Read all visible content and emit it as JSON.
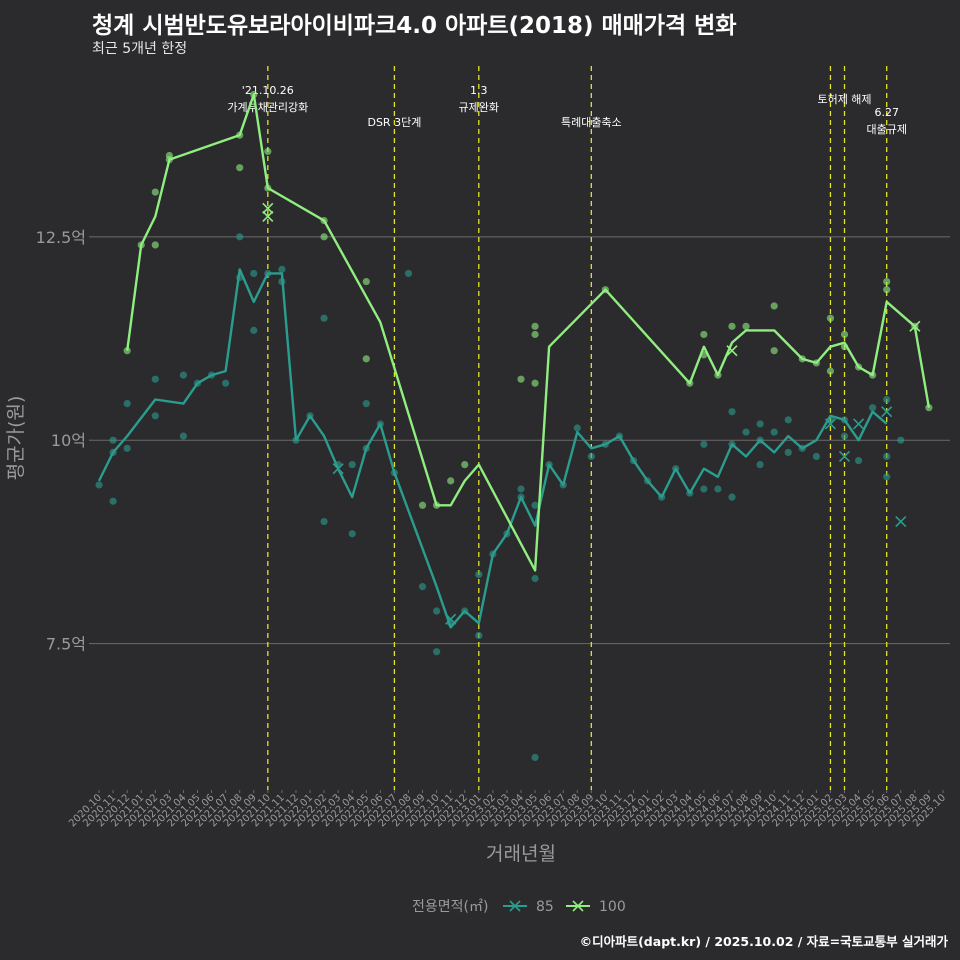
{
  "header": {
    "title": "청계 시범반도유보라아이비파크4.0 아파트(2018) 매매가격 변화",
    "subtitle": "최근 5개년 한정"
  },
  "footer": {
    "caption": "©디아파트(dapt.kr) / 2025.10.02 / 자료=국토교통부 실거래가"
  },
  "colors": {
    "background": "#2b2b2d",
    "grid": "#6b6b6b",
    "series_85": "#2a9d8f",
    "series_100": "#90ee80",
    "event_line": "#e3e32a",
    "axis_text": "#9a9a9a"
  },
  "chart_data": {
    "type": "line",
    "title": "청계 시범반도유보라아이비파크4.0 아파트(2018) 매매가격 변화",
    "xlabel": "거래년월",
    "ylabel": "평균가(원)",
    "ylim": [
      5.7,
      14.6
    ],
    "y_ticks": [
      7.5,
      10,
      12.5
    ],
    "y_tick_labels": [
      "7.5억",
      "10억",
      "12.5억"
    ],
    "grid": true,
    "legend": {
      "title": "전용면적(㎡)",
      "position": "bottom",
      "entries": [
        "85",
        "100"
      ]
    },
    "categories": [
      "2020.10",
      "2020.11",
      "2020.12",
      "2021.01",
      "2021.02",
      "2021.03",
      "2021.04",
      "2021.05",
      "2021.06",
      "2021.07",
      "2021.08",
      "2021.09",
      "2021.10",
      "2021.11",
      "2021.12",
      "2022.01",
      "2022.02",
      "2022.03",
      "2022.04",
      "2022.05",
      "2022.06",
      "2022.07",
      "2022.08",
      "2022.09",
      "2022.10",
      "2022.11",
      "2022.12",
      "2023.01",
      "2023.02",
      "2023.03",
      "2023.04",
      "2023.05",
      "2023.06",
      "2023.07",
      "2023.08",
      "2023.09",
      "2023.10",
      "2023.11",
      "2023.12",
      "2024.01",
      "2024.02",
      "2024.03",
      "2024.04",
      "2024.05",
      "2024.06",
      "2024.07",
      "2024.08",
      "2024.09",
      "2024.10",
      "2024.11",
      "2024.12",
      "2025.01",
      "2025.02",
      "2025.03",
      "2025.04",
      "2025.05",
      "2025.06",
      "2025.07",
      "2025.08",
      "2025.09",
      "2025.10"
    ],
    "x_tick_labels": [
      "2020.10",
      "2020.11",
      "2020.12",
      "2021.01",
      "2021.02",
      "2021.03",
      "2021.04",
      "2021.05",
      "2021.06",
      "2021.07",
      "2021.08",
      "2021.09",
      "2021.10",
      "2021.11",
      "2021.12",
      "2022.01",
      "2022.02",
      "2022.03",
      "2022.04",
      "2022.05",
      "2022.06",
      "2022.07",
      "2022.08",
      "2022.09",
      "2022.10",
      "2022.11",
      "2022.12",
      "2023.01",
      "2023.02",
      "2023.03",
      "2023.04",
      "2023.05",
      "2023.06",
      "2023.07",
      "2023.08",
      "2023.09",
      "2023.10",
      "2023.11",
      "2023.12",
      "2024.01",
      "2024.02",
      "2024.03",
      "2024.04",
      "2024.05",
      "2024.06",
      "2024.07",
      "2024.08",
      "2024.09",
      "2024.10",
      "2024.11",
      "2024.12",
      "2025.01",
      "2025.02",
      "2025.03",
      "2025.04",
      "2025.05",
      "2025.06",
      "2025.07",
      "2025.08",
      "2025.09",
      "2025.10"
    ],
    "series": [
      {
        "name": "85",
        "line": [
          [
            0,
            9.5
          ],
          [
            1,
            9.85
          ],
          [
            2,
            10.05
          ],
          [
            4,
            10.5
          ],
          [
            6,
            10.45
          ],
          [
            7,
            10.7
          ],
          [
            8,
            10.8
          ],
          [
            9,
            10.85
          ],
          [
            10,
            12.1
          ],
          [
            11,
            11.7
          ],
          [
            12,
            12.05
          ],
          [
            13,
            12.05
          ],
          [
            14,
            10.0
          ],
          [
            15,
            10.3
          ],
          [
            16,
            10.05
          ],
          [
            17,
            9.65
          ],
          [
            18,
            9.3
          ],
          [
            19,
            9.9
          ],
          [
            20,
            10.2
          ],
          [
            21,
            9.6
          ],
          [
            24,
            8.2
          ],
          [
            25,
            7.7
          ],
          [
            26,
            7.9
          ],
          [
            27,
            7.75
          ],
          [
            28,
            8.6
          ],
          [
            29,
            8.85
          ],
          [
            30,
            9.3
          ],
          [
            31,
            8.95
          ],
          [
            32,
            9.7
          ],
          [
            33,
            9.45
          ],
          [
            34,
            10.1
          ],
          [
            35,
            9.9
          ],
          [
            36,
            9.95
          ],
          [
            37,
            10.05
          ],
          [
            38,
            9.75
          ],
          [
            39,
            9.5
          ],
          [
            40,
            9.3
          ],
          [
            41,
            9.65
          ],
          [
            42,
            9.35
          ],
          [
            43,
            9.65
          ],
          [
            44,
            9.55
          ],
          [
            45,
            9.95
          ],
          [
            46,
            9.8
          ],
          [
            47,
            10.0
          ],
          [
            48,
            9.85
          ],
          [
            49,
            10.05
          ],
          [
            50,
            9.9
          ],
          [
            51,
            10.0
          ],
          [
            52,
            10.3
          ],
          [
            53,
            10.25
          ],
          [
            54,
            10.0
          ],
          [
            55,
            10.35
          ],
          [
            56,
            10.2
          ]
        ],
        "points": [
          [
            0,
            9.45
          ],
          [
            1,
            9.25
          ],
          [
            1,
            9.85
          ],
          [
            1,
            10.0
          ],
          [
            2,
            9.9
          ],
          [
            2,
            10.45
          ],
          [
            4,
            10.3
          ],
          [
            4,
            10.75
          ],
          [
            6,
            10.05
          ],
          [
            6,
            10.8
          ],
          [
            7,
            10.7
          ],
          [
            8,
            10.8
          ],
          [
            9,
            10.7
          ],
          [
            10,
            12.5
          ],
          [
            10,
            12.0
          ],
          [
            11,
            11.35
          ],
          [
            11,
            12.05
          ],
          [
            12,
            12.05
          ],
          [
            13,
            12.1
          ],
          [
            13,
            11.95
          ],
          [
            14,
            10.0
          ],
          [
            15,
            10.3
          ],
          [
            16,
            9.0
          ],
          [
            16,
            11.5
          ],
          [
            17,
            9.7
          ],
          [
            18,
            8.85
          ],
          [
            18,
            9.7
          ],
          [
            19,
            9.9
          ],
          [
            19,
            10.45
          ],
          [
            20,
            10.2
          ],
          [
            21,
            9.6
          ],
          [
            22,
            12.05
          ],
          [
            23,
            8.2
          ],
          [
            24,
            7.9
          ],
          [
            24,
            7.4
          ],
          [
            25,
            7.75
          ],
          [
            26,
            7.9
          ],
          [
            27,
            7.6
          ],
          [
            27,
            8.35
          ],
          [
            28,
            8.6
          ],
          [
            29,
            8.85
          ],
          [
            30,
            9.4
          ],
          [
            30,
            9.3
          ],
          [
            31,
            8.3
          ],
          [
            31,
            9.2
          ],
          [
            31,
            6.1
          ],
          [
            32,
            9.7
          ],
          [
            33,
            9.45
          ],
          [
            34,
            10.15
          ],
          [
            35,
            9.8
          ],
          [
            36,
            9.95
          ],
          [
            37,
            10.05
          ],
          [
            38,
            9.75
          ],
          [
            39,
            9.5
          ],
          [
            40,
            9.3
          ],
          [
            41,
            9.65
          ],
          [
            42,
            9.35
          ],
          [
            43,
            9.4
          ],
          [
            43,
            9.95
          ],
          [
            44,
            9.4
          ],
          [
            45,
            9.3
          ],
          [
            45,
            9.95
          ],
          [
            45,
            10.35
          ],
          [
            46,
            10.1
          ],
          [
            47,
            9.7
          ],
          [
            47,
            10.0
          ],
          [
            47,
            10.2
          ],
          [
            48,
            10.1
          ],
          [
            49,
            9.85
          ],
          [
            49,
            10.25
          ],
          [
            50,
            9.9
          ],
          [
            51,
            9.8
          ],
          [
            52,
            10.25
          ],
          [
            53,
            10.25
          ],
          [
            53,
            10.05
          ],
          [
            54,
            9.75
          ],
          [
            55,
            10.4
          ],
          [
            56,
            9.8
          ],
          [
            56,
            9.55
          ],
          [
            56,
            10.5
          ],
          [
            57,
            10.0
          ]
        ],
        "crosses": [
          [
            17,
            9.65
          ],
          [
            25,
            7.8
          ],
          [
            52,
            10.2
          ],
          [
            53,
            9.8
          ],
          [
            54,
            10.2
          ],
          [
            56,
            10.35
          ],
          [
            57,
            9.0
          ]
        ]
      },
      {
        "name": "100",
        "line": [
          [
            2,
            11.1
          ],
          [
            3,
            12.4
          ],
          [
            4,
            12.75
          ],
          [
            5,
            13.45
          ],
          [
            10,
            13.75
          ],
          [
            11,
            14.25
          ],
          [
            12,
            13.1
          ],
          [
            16,
            12.7
          ],
          [
            20,
            11.45
          ],
          [
            24,
            9.2
          ],
          [
            25,
            9.2
          ],
          [
            26,
            9.5
          ],
          [
            27,
            9.7
          ],
          [
            31,
            8.4
          ],
          [
            32,
            11.15
          ],
          [
            36,
            11.85
          ],
          [
            42,
            10.7
          ],
          [
            43,
            11.15
          ],
          [
            44,
            10.8
          ],
          [
            45,
            11.2
          ],
          [
            46,
            11.35
          ],
          [
            48,
            11.35
          ],
          [
            50,
            11.0
          ],
          [
            51,
            10.95
          ],
          [
            52,
            11.15
          ],
          [
            53,
            11.2
          ],
          [
            54,
            10.9
          ],
          [
            55,
            10.8
          ],
          [
            56,
            11.7
          ],
          [
            58,
            11.4
          ],
          [
            59,
            10.4
          ]
        ],
        "points": [
          [
            2,
            11.1
          ],
          [
            3,
            12.4
          ],
          [
            4,
            12.4
          ],
          [
            4,
            13.05
          ],
          [
            5,
            13.45
          ],
          [
            5,
            13.5
          ],
          [
            10,
            13.35
          ],
          [
            10,
            13.75
          ],
          [
            11,
            14.25
          ],
          [
            12,
            13.55
          ],
          [
            12,
            13.1
          ],
          [
            16,
            12.5
          ],
          [
            16,
            12.7
          ],
          [
            19,
            11.0
          ],
          [
            19,
            11.95
          ],
          [
            23,
            9.2
          ],
          [
            24,
            9.2
          ],
          [
            25,
            9.5
          ],
          [
            26,
            9.7
          ],
          [
            30,
            10.75
          ],
          [
            31,
            11.3
          ],
          [
            31,
            11.4
          ],
          [
            31,
            10.7
          ],
          [
            36,
            11.85
          ],
          [
            42,
            10.7
          ],
          [
            43,
            11.3
          ],
          [
            43,
            11.05
          ],
          [
            44,
            10.8
          ],
          [
            45,
            11.4
          ],
          [
            46,
            11.4
          ],
          [
            48,
            11.65
          ],
          [
            48,
            11.1
          ],
          [
            50,
            11.0
          ],
          [
            51,
            10.95
          ],
          [
            52,
            11.5
          ],
          [
            52,
            10.85
          ],
          [
            53,
            11.3
          ],
          [
            53,
            11.15
          ],
          [
            54,
            10.9
          ],
          [
            55,
            10.8
          ],
          [
            56,
            11.95
          ],
          [
            56,
            11.85
          ],
          [
            58,
            11.4
          ],
          [
            59,
            10.4
          ]
        ],
        "crosses": [
          [
            12,
            12.85
          ],
          [
            12,
            12.75
          ],
          [
            45,
            11.1
          ],
          [
            58,
            11.4
          ]
        ]
      }
    ],
    "events": [
      {
        "x": 12,
        "label_lines": [
          "'21.10.26",
          "가계부채관리강화"
        ],
        "label_level": 1
      },
      {
        "x": 21,
        "label_lines": [
          "DSR 3단계"
        ],
        "label_level": 2
      },
      {
        "x": 27,
        "label_lines": [
          "1.3",
          "규제완화"
        ],
        "label_level": 1
      },
      {
        "x": 35,
        "label_lines": [
          "특례대출축소"
        ],
        "label_level": 2
      },
      {
        "x": 52,
        "label_lines": [],
        "label_level": 1
      },
      {
        "x": 53,
        "label_lines": [
          "토허제 해제"
        ],
        "label_level": 1
      },
      {
        "x": 56,
        "label_lines": [
          "6.27",
          "대출규제"
        ],
        "label_level": 3
      }
    ]
  }
}
